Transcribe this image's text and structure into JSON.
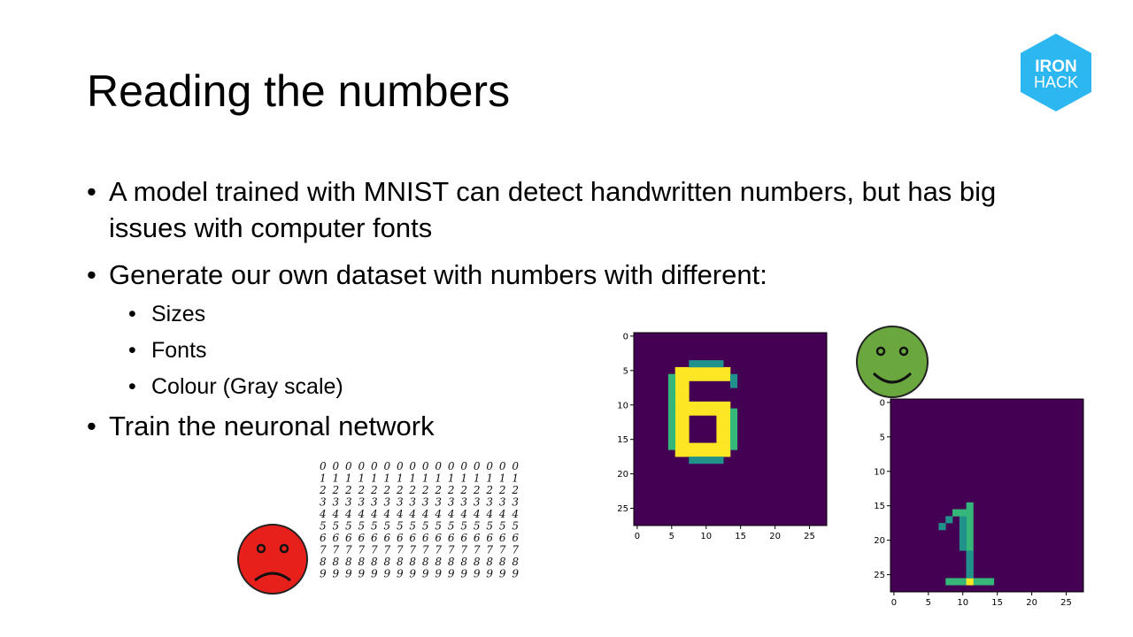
{
  "slide": {
    "title": "Reading the numbers",
    "bullets": [
      "A model trained with MNIST can detect handwritten numbers, but has big issues with computer fonts",
      "Generate our own dataset with numbers with different:",
      "Train the neuronal network"
    ],
    "sub_bullets": [
      "Sizes",
      "Fonts",
      "Colour (Gray scale)"
    ]
  },
  "logo": {
    "line1": "IRON",
    "line2": "HACK",
    "color": "#2db7f0"
  },
  "colors": {
    "viridis_bg": "#440154",
    "viridis_yellow": "#fde725",
    "viridis_green": "#35b779",
    "viridis_teal": "#21918c",
    "happy_face": "#6aa83f",
    "sad_face": "#e8201b"
  },
  "plot6": {
    "digit": "6",
    "x_ticks": [
      "0",
      "5",
      "10",
      "15",
      "20",
      "25"
    ],
    "y_ticks": [
      "0",
      "5",
      "10",
      "15",
      "20",
      "25"
    ]
  },
  "plot1": {
    "digit": "1",
    "x_ticks": [
      "0",
      "5",
      "10",
      "15",
      "20",
      "25"
    ],
    "y_ticks": [
      "0",
      "5",
      "10",
      "15",
      "20",
      "25"
    ]
  },
  "mnist_rows": [
    "0 0 0 0 0 0 0 0 0 0 0 0 0 0 0 0",
    "1 1 1 1 1 1 1 1 1 1 1 1 1 1 1 1",
    "2 2 2 2 2 2 2 2 2 2 2 2 2 2 2 2",
    "3 3 3 3 3 3 3 3 3 3 3 3 3 3 3 3",
    "4 4 4 4 4 4 4 4 4 4 4 4 4 4 4 4",
    "5 5 5 5 5 5 5 5 5 5 5 5 5 5 5 5",
    "6 6 6 6 6 6 6 6 6 6 6 6 6 6 6 6",
    "7 7 7 7 7 7 7 7 7 7 7 7 7 7 7 7",
    "8 8 8 8 8 8 8 8 8 8 8 8 8 8 8 8",
    "9 9 9 9 9 9 9 9 9 9 9 9 9 9 9 9"
  ]
}
